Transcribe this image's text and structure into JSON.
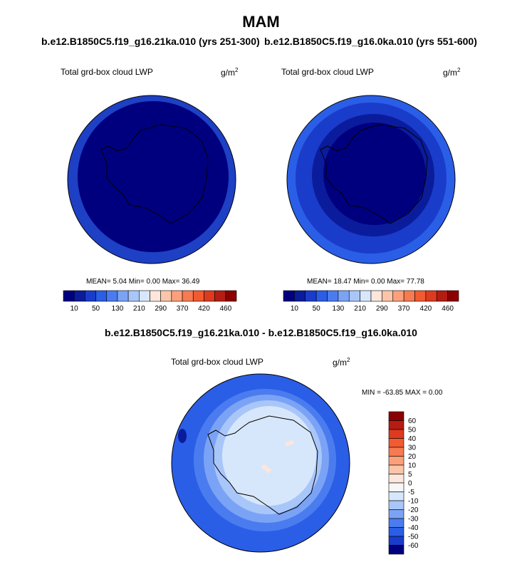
{
  "title": "MAM",
  "case_left": "b.e12.B1850C5.f19_g16.21ka.010 (yrs 251-300)",
  "case_right": "b.e12.B1850C5.f19_g16.0ka.010 (yrs 551-600)",
  "diff_title": "b.e12.B1850C5.f19_g16.21ka.010 - b.e12.B1850C5.f19_g16.0ka.010",
  "variable_label": "Total grd-box cloud LWP",
  "units": "g/m",
  "units_exp": "2",
  "panels": {
    "left": {
      "mean": "5.04",
      "min": "0.00",
      "max": "36.49",
      "stats_text": "MEAN=  5.04  Min=  0.00  Max=  36.49"
    },
    "right": {
      "mean": "18.47",
      "min": "0.00",
      "max": "77.78",
      "stats_text": "MEAN=  18.47  Min=  0.00  Max=  77.78"
    },
    "diff": {
      "min": "-63.85",
      "max": "0.00",
      "stats_text": "MIN = -63.85 MAX =   0.00"
    }
  },
  "chart_data": [
    {
      "type": "heatmap",
      "projection": "polar-stereographic-south",
      "title": "b.e12.B1850C5.f19_g16.21ka.010 (yrs 251-300)",
      "variable": "Total grd-box cloud LWP",
      "units": "g/m2",
      "mean": 5.04,
      "min": 0.0,
      "max": 36.49,
      "colorbar_ticks": [
        10,
        50,
        130,
        210,
        290,
        370,
        420,
        460
      ],
      "colorbar_colors": [
        "#00007f",
        "#0a1c9c",
        "#1a3ccb",
        "#2a5ee6",
        "#4a7cf0",
        "#7ba3f5",
        "#a9c6f9",
        "#d7e7fb",
        "#fde6db",
        "#fcc4a8",
        "#fba07b",
        "#f87a50",
        "#f25a30",
        "#dd3a1f",
        "#b51c12",
        "#8b0000"
      ]
    },
    {
      "type": "heatmap",
      "projection": "polar-stereographic-south",
      "title": "b.e12.B1850C5.f19_g16.0ka.010 (yrs 551-600)",
      "variable": "Total grd-box cloud LWP",
      "units": "g/m2",
      "mean": 18.47,
      "min": 0.0,
      "max": 77.78,
      "colorbar_ticks": [
        10,
        50,
        130,
        210,
        290,
        370,
        420,
        460
      ],
      "colorbar_colors": [
        "#00007f",
        "#0a1c9c",
        "#1a3ccb",
        "#2a5ee6",
        "#4a7cf0",
        "#7ba3f5",
        "#a9c6f9",
        "#d7e7fb",
        "#fde6db",
        "#fcc4a8",
        "#fba07b",
        "#f87a50",
        "#f25a30",
        "#dd3a1f",
        "#b51c12",
        "#8b0000"
      ]
    },
    {
      "type": "heatmap",
      "projection": "polar-stereographic-south",
      "title": "b.e12.B1850C5.f19_g16.21ka.010 - b.e12.B1850C5.f19_g16.0ka.010",
      "variable": "Total grd-box cloud LWP",
      "units": "g/m2",
      "min": -63.85,
      "max": 0.0,
      "colorbar_ticks": [
        60,
        50,
        40,
        30,
        20,
        10,
        5,
        0,
        -5,
        -10,
        -20,
        -30,
        -40,
        -50,
        -60
      ],
      "colorbar_colors": [
        "#8b0000",
        "#b51c12",
        "#dd3a1f",
        "#f25a30",
        "#f87a50",
        "#fba07b",
        "#fcc4a8",
        "#fde6db",
        "#f7f7f7",
        "#d7e7fb",
        "#a9c6f9",
        "#7ba3f5",
        "#4a7cf0",
        "#2a5ee6",
        "#1a3ccb",
        "#00007f"
      ]
    }
  ]
}
